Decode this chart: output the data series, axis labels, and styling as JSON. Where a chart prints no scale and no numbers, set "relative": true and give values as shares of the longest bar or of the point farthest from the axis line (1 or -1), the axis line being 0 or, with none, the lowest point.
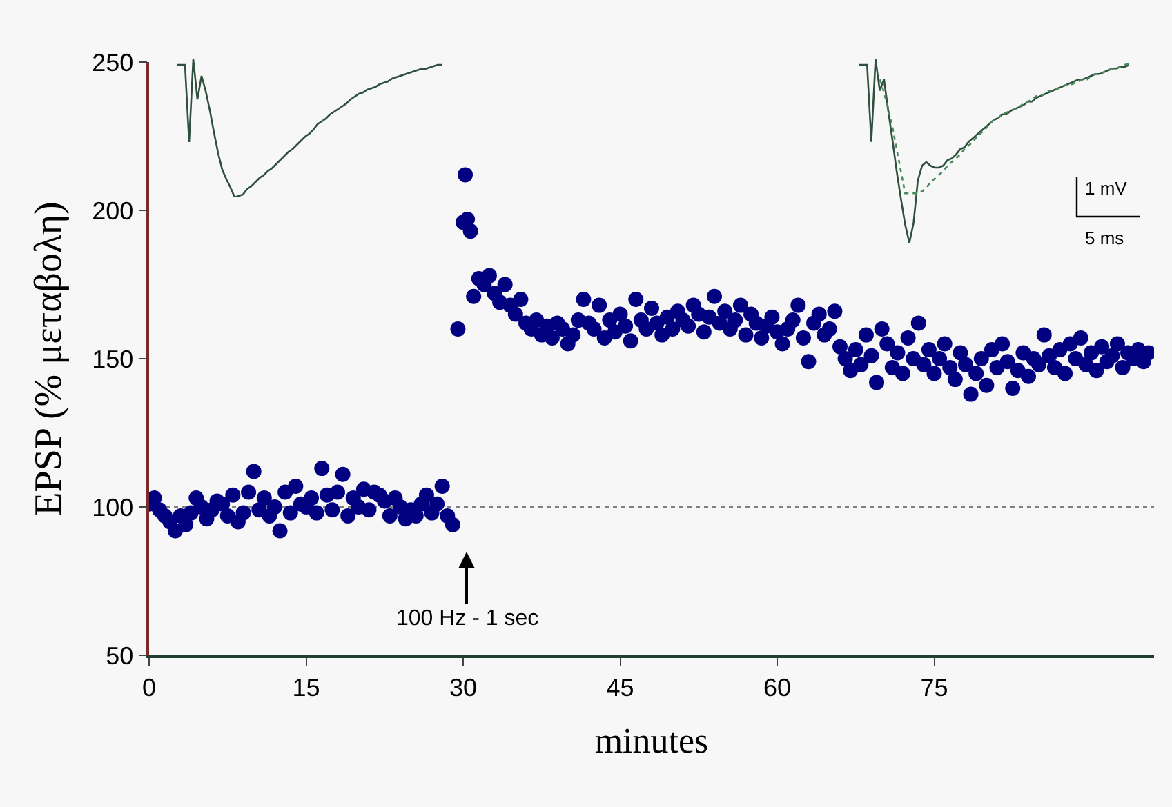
{
  "chart_data": [
    {
      "type": "scatter",
      "xlabel": "minutes",
      "ylabel": "EPSP (% μεταβολη)",
      "xlim": [
        0,
        96
      ],
      "xticks": [
        0,
        15,
        30,
        45,
        60,
        75
      ],
      "ylim": [
        50,
        250
      ],
      "yticks": [
        50,
        100,
        150,
        200,
        250
      ],
      "grid": false,
      "marker": "circle",
      "ref_lines": [
        {
          "axis": "y",
          "value": 100,
          "color": "#808080",
          "line_style": "dotted"
        }
      ],
      "annotations": [
        "100 Hz - 1 sec"
      ],
      "series": [
        {
          "color": "#000080",
          "x": [
            0,
            0.5,
            1,
            1.5,
            2,
            2.5,
            3,
            3.5,
            4,
            4.5,
            5,
            5.5,
            6,
            6.5,
            7,
            7.5,
            8,
            8.5,
            9,
            9.5,
            10,
            10.5,
            11,
            11.5,
            12,
            12.5,
            13,
            13.5,
            14,
            14.5,
            15,
            15.5,
            16,
            16.5,
            17,
            17.5,
            18,
            18.5,
            19,
            19.5,
            20,
            20.5,
            21,
            21.5,
            22,
            22.5,
            23,
            23.5,
            24,
            24.5,
            25,
            25.5,
            26,
            26.5,
            27,
            27.5,
            28,
            28.5,
            29,
            29.5,
            30,
            30.2,
            30.4,
            30.7,
            31,
            31.5,
            32,
            32.5,
            33,
            33.5,
            34,
            34.5,
            35,
            35.5,
            36,
            36.5,
            37,
            37.5,
            38,
            38.5,
            39,
            39.5,
            40,
            40.5,
            41,
            41.5,
            42,
            42.5,
            43,
            43.5,
            44,
            44.5,
            45,
            45.5,
            46,
            46.5,
            47,
            47.5,
            48,
            48.5,
            49,
            49.5,
            50,
            50.5,
            51,
            51.5,
            52,
            52.5,
            53,
            53.5,
            54,
            54.5,
            55,
            55.5,
            56,
            56.5,
            57,
            57.5,
            58,
            58.5,
            59,
            59.5,
            60,
            60.5,
            61,
            61.5,
            62,
            62.5,
            63,
            63.5,
            64,
            64.5,
            65,
            65.5,
            66,
            66.5,
            67,
            67.5,
            68,
            68.5,
            69,
            69.5,
            70,
            70.5,
            71,
            71.5,
            72,
            72.5,
            73,
            73.5,
            74,
            74.5,
            75,
            75.5,
            76,
            76.5,
            77,
            77.5,
            78,
            78.5,
            79,
            79.5,
            80,
            80.5,
            81,
            81.5,
            82,
            82.5,
            83,
            83.5,
            84,
            84.5,
            85,
            85.5,
            86,
            86.5,
            87,
            87.5,
            88,
            88.5,
            89,
            89.5,
            90,
            90.5,
            91,
            91.5,
            92,
            92.5,
            93,
            93.5,
            94,
            94.5,
            95,
            95.5
          ],
          "values": [
            101,
            103,
            99,
            97,
            95,
            92,
            97,
            94,
            98,
            103,
            100,
            96,
            99,
            102,
            101,
            97,
            104,
            95,
            98,
            105,
            112,
            99,
            103,
            97,
            100,
            92,
            105,
            98,
            107,
            101,
            100,
            103,
            98,
            113,
            104,
            99,
            105,
            111,
            97,
            103,
            100,
            106,
            99,
            105,
            104,
            102,
            97,
            103,
            100,
            96,
            99,
            97,
            101,
            104,
            98,
            101,
            107,
            97,
            94,
            160,
            196,
            212,
            197,
            193,
            171,
            177,
            175,
            178,
            172,
            169,
            175,
            168,
            165,
            170,
            162,
            160,
            163,
            158,
            161,
            157,
            162,
            160,
            155,
            158,
            163,
            170,
            162,
            160,
            168,
            157,
            163,
            159,
            165,
            161,
            156,
            170,
            163,
            160,
            167,
            162,
            158,
            164,
            160,
            166,
            163,
            161,
            168,
            165,
            159,
            164,
            171,
            162,
            166,
            160,
            163,
            168,
            158,
            165,
            162,
            157,
            161,
            164,
            159,
            155,
            160,
            163,
            168,
            157,
            149,
            162,
            165,
            158,
            160,
            166,
            154,
            150,
            146,
            153,
            148,
            158,
            151,
            142,
            160,
            155,
            147,
            152,
            145,
            157,
            150,
            162,
            148,
            153,
            145,
            150,
            155,
            147,
            143,
            152,
            148,
            138,
            145,
            150,
            141,
            153,
            147,
            155,
            149,
            140,
            146,
            152,
            144,
            150,
            148,
            158,
            151,
            147,
            153,
            145,
            155,
            150,
            157,
            148,
            152,
            146,
            154,
            149,
            151,
            155,
            147,
            152,
            150,
            153,
            149,
            152
          ]
        }
      ]
    },
    {
      "type": "line",
      "relative": true,
      "tick_labels": false,
      "marker": "none",
      "categories": [
        null,
        null,
        null,
        null,
        null,
        null,
        null,
        null,
        null,
        null,
        null,
        null,
        null,
        null,
        null,
        null,
        null,
        null,
        null,
        null,
        null,
        null,
        null,
        null,
        null,
        null,
        null,
        null,
        null,
        null,
        null,
        null,
        null,
        null,
        null,
        null,
        null,
        null,
        null,
        null,
        null,
        null,
        null,
        null,
        null,
        null,
        null,
        null,
        null,
        null,
        null,
        null,
        null,
        null,
        null,
        null,
        null,
        null,
        null,
        null,
        null,
        null,
        null,
        null,
        null
      ],
      "series": [
        {
          "color": "#2f4f3f",
          "line_style": "solid",
          "values": [
            0.96,
            0.96,
            0.96,
            0.4,
            1,
            0.71,
            0.88,
            0.77,
            0.63,
            0.47,
            0.32,
            0.2,
            0.13,
            0.07,
            0,
            0.01,
            0.02,
            0.06,
            0.08,
            0.11,
            0.14,
            0.16,
            0.19,
            0.21,
            0.24,
            0.27,
            0.3,
            0.33,
            0.35,
            0.38,
            0.41,
            0.44,
            0.46,
            0.49,
            0.53,
            0.55,
            0.57,
            0.6,
            0.62,
            0.64,
            0.66,
            0.68,
            0.71,
            0.73,
            0.75,
            0.76,
            0.78,
            0.79,
            0.8,
            0.82,
            0.83,
            0.84,
            0.86,
            0.87,
            0.88,
            0.89,
            0.9,
            0.91,
            0.92,
            0.93,
            0.93,
            0.94,
            0.95,
            0.96,
            0.96
          ]
        }
      ]
    },
    {
      "type": "line",
      "relative": true,
      "tick_labels": false,
      "marker": "none",
      "annotations": [
        "1 mV",
        "5 ms"
      ],
      "categories": [
        null,
        null,
        null,
        null,
        null,
        null,
        null,
        null,
        null,
        null,
        null,
        null,
        null,
        null,
        null,
        null,
        null,
        null,
        null,
        null,
        null,
        null,
        null,
        null,
        null,
        null,
        null,
        null,
        null,
        null,
        null,
        null,
        null,
        null,
        null,
        null,
        null,
        null,
        null,
        null,
        null,
        null,
        null,
        null,
        null,
        null,
        null,
        null,
        null,
        null,
        null,
        null,
        null,
        null,
        null,
        null,
        null,
        null,
        null,
        null,
        null,
        null,
        null,
        null,
        null
      ],
      "series": [
        {
          "color": "#2f4f3f",
          "line_style": "solid",
          "values": [
            0.97,
            0.97,
            0.97,
            0.55,
            1,
            0.83,
            0.89,
            0.72,
            0.56,
            0.39,
            0.24,
            0.1,
            0,
            0.11,
            0.34,
            0.42,
            0.44,
            0.42,
            0.41,
            0.41,
            0.42,
            0.45,
            0.46,
            0.48,
            0.51,
            0.52,
            0.55,
            0.57,
            0.59,
            0.61,
            0.63,
            0.65,
            0.67,
            0.68,
            0.7,
            0.7,
            0.72,
            0.73,
            0.74,
            0.75,
            0.77,
            0.77,
            0.79,
            0.8,
            0.81,
            0.82,
            0.83,
            0.84,
            0.85,
            0.86,
            0.87,
            0.88,
            0.89,
            0.89,
            0.9,
            0.91,
            0.92,
            0.92,
            0.93,
            0.94,
            0.95,
            0.95,
            0.96,
            0.96,
            0.97
          ]
        },
        {
          "color": "#4a8a5a",
          "line_style": "dotted",
          "values": [
            null,
            null,
            null,
            null,
            null,
            0.89,
            0.82,
            0.73,
            0.63,
            0.51,
            0.39,
            0.27,
            0.27,
            0.27,
            0.27,
            0.28,
            0.3,
            0.33,
            0.35,
            0.37,
            0.39,
            0.42,
            0.44,
            0.46,
            0.48,
            0.51,
            0.53,
            0.55,
            0.58,
            0.6,
            0.62,
            0.65,
            0.67,
            0.68,
            0.7,
            0.71,
            0.72,
            0.73,
            0.74,
            0.76,
            0.77,
            0.78,
            0.8,
            0.8,
            0.81,
            0.83,
            0.83,
            0.84,
            0.85,
            0.86,
            0.86,
            0.87,
            0.88,
            0.89,
            0.89,
            0.91,
            0.92,
            0.92,
            0.93,
            0.94,
            0.95,
            0.95,
            0.96,
            0.97,
            0.98
          ]
        }
      ]
    }
  ]
}
